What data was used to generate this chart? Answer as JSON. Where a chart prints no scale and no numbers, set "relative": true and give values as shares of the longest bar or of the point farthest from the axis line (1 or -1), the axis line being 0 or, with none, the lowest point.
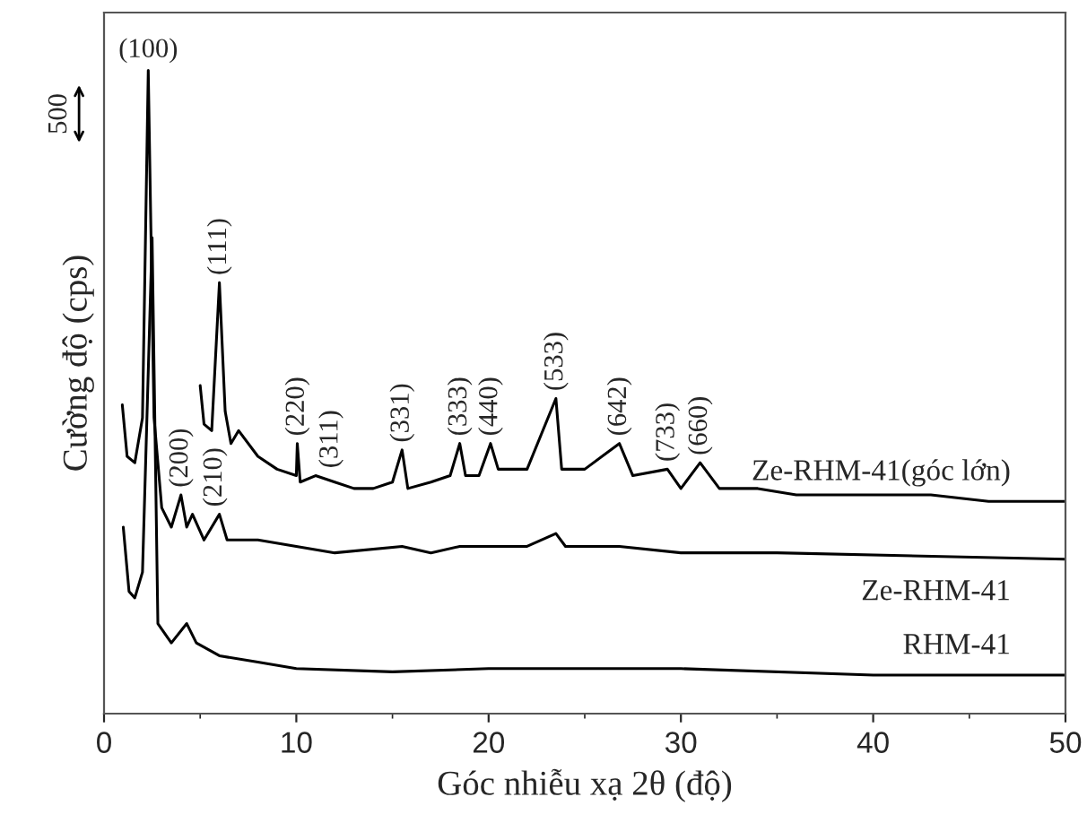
{
  "chart_data": {
    "type": "line",
    "relative": true,
    "xlabel": "Góc nhiễu xạ 2θ (độ)",
    "ylabel": "Cường độ (cps)",
    "xlim": [
      0,
      50
    ],
    "xticks": [
      0,
      10,
      20,
      30,
      40,
      50
    ],
    "grid": false,
    "legend": false,
    "marker": "none",
    "line_style": "solid",
    "series": [
      {
        "name": "Ze-RHM-41(góc lớn)",
        "color": "#000000",
        "x": [
          5.0,
          5.2,
          5.6,
          6.0,
          6.3,
          6.6,
          7,
          8,
          9,
          10,
          10.05,
          10.2,
          11,
          12,
          13,
          14,
          15,
          15.5,
          15.8,
          17,
          18,
          18.5,
          18.8,
          19.5,
          20.1,
          20.5,
          22,
          23.5,
          23.8,
          25,
          26.8,
          27.5,
          29.3,
          30,
          31,
          32,
          34,
          36,
          40,
          43,
          46,
          50
        ],
        "values": [
          0.51,
          0.45,
          0.44,
          0.67,
          0.47,
          0.42,
          0.44,
          0.4,
          0.38,
          0.37,
          0.42,
          0.36,
          0.37,
          0.36,
          0.35,
          0.35,
          0.36,
          0.41,
          0.35,
          0.36,
          0.37,
          0.42,
          0.37,
          0.37,
          0.42,
          0.38,
          0.38,
          0.49,
          0.38,
          0.38,
          0.42,
          0.37,
          0.38,
          0.35,
          0.39,
          0.35,
          0.35,
          0.34,
          0.34,
          0.34,
          0.33,
          0.33
        ]
      },
      {
        "name": "Ze-RHM-41",
        "color": "#000000",
        "x": [
          0.95,
          1.2,
          1.6,
          2.0,
          2.3,
          2.6,
          3.0,
          3.5,
          4.0,
          4.3,
          4.6,
          5.2,
          6.0,
          6.4,
          8,
          10,
          12,
          15.5,
          17,
          18.5,
          20.1,
          22,
          23.5,
          24,
          26.8,
          30,
          35,
          50
        ],
        "values": [
          0.48,
          0.4,
          0.39,
          0.46,
          1.0,
          0.46,
          0.32,
          0.29,
          0.34,
          0.29,
          0.31,
          0.27,
          0.31,
          0.27,
          0.27,
          0.26,
          0.25,
          0.26,
          0.25,
          0.26,
          0.26,
          0.26,
          0.28,
          0.26,
          0.26,
          0.25,
          0.25,
          0.24
        ]
      },
      {
        "name": "RHM-41",
        "color": "#000000",
        "x": [
          1.0,
          1.3,
          1.6,
          2.0,
          2.5,
          2.8,
          3.5,
          4.3,
          4.8,
          6,
          8,
          10,
          15,
          20,
          30,
          40,
          50
        ],
        "values": [
          0.29,
          0.19,
          0.18,
          0.22,
          0.74,
          0.14,
          0.11,
          0.14,
          0.11,
          0.09,
          0.08,
          0.07,
          0.065,
          0.07,
          0.07,
          0.06,
          0.06
        ]
      }
    ],
    "annotations": [
      {
        "text": "(100)",
        "x": 2.3,
        "y": 1.0
      },
      {
        "text": "(111)",
        "x": 6.0,
        "y": 0.67
      },
      {
        "text": "(200)",
        "x": 4.0,
        "y": 0.34
      },
      {
        "text": "(210)",
        "x": 4.6,
        "y": 0.31
      },
      {
        "text": "(220)",
        "x": 10.05,
        "y": 0.42
      },
      {
        "text": "(311)",
        "x": 11.8,
        "y": 0.37
      },
      {
        "text": "(331)",
        "x": 15.5,
        "y": 0.41
      },
      {
        "text": "(333)",
        "x": 18.5,
        "y": 0.42
      },
      {
        "text": "(440)",
        "x": 20.1,
        "y": 0.42
      },
      {
        "text": "(533)",
        "x": 23.5,
        "y": 0.49
      },
      {
        "text": "(642)",
        "x": 26.8,
        "y": 0.42
      },
      {
        "text": "(733)",
        "x": 29.3,
        "y": 0.38
      },
      {
        "text": "(660)",
        "x": 31.0,
        "y": 0.39
      },
      "500"
    ]
  }
}
